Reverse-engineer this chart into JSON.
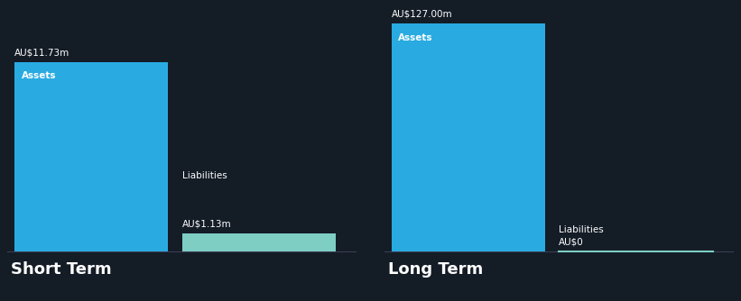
{
  "background_color": "#141c26",
  "text_color": "#ffffff",
  "bar_color_assets": "#29abe2",
  "bar_color_liabilities": "#7ecec4",
  "short_term": {
    "assets_value": 11.73,
    "liabilities_value": 1.13,
    "assets_label": "Assets",
    "assets_value_label": "AU$11.73m",
    "liabilities_label": "Liabilities",
    "liabilities_value_label": "AU$1.13m",
    "section_label": "Short Term",
    "y_max": 15.0
  },
  "long_term": {
    "assets_value": 127.0,
    "liabilities_value": 0,
    "assets_label": "Assets",
    "assets_value_label": "AU$127.00m",
    "liabilities_label": "Liabilities",
    "liabilities_value_label": "AU$0",
    "section_label": "Long Term",
    "y_max": 135.0
  }
}
